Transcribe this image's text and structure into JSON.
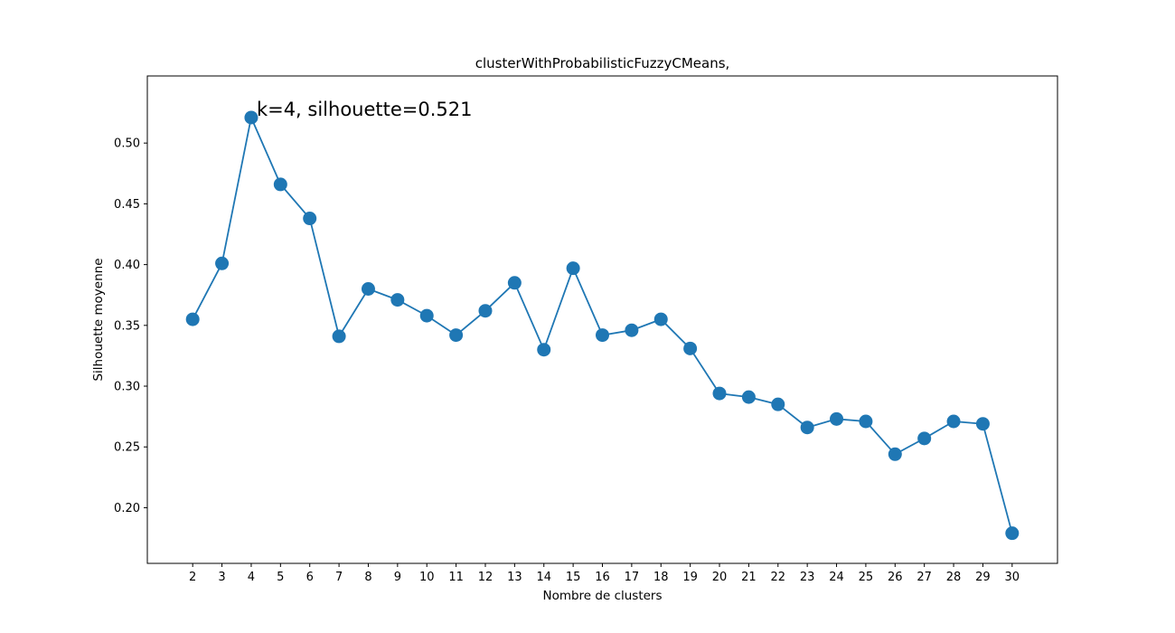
{
  "chart_data": {
    "type": "line",
    "title": "clusterWithProbabilisticFuzzyCMeans,",
    "xlabel": "Nombre de clusters",
    "ylabel": "Silhouette moyenne",
    "x": [
      2,
      3,
      4,
      5,
      6,
      7,
      8,
      9,
      10,
      11,
      12,
      13,
      14,
      15,
      16,
      17,
      18,
      19,
      20,
      21,
      22,
      23,
      24,
      25,
      26,
      27,
      28,
      29,
      30
    ],
    "series": [
      {
        "values": [
          0.355,
          0.401,
          0.521,
          0.466,
          0.438,
          0.341,
          0.38,
          0.371,
          0.358,
          0.342,
          0.362,
          0.385,
          0.33,
          0.397,
          0.342,
          0.346,
          0.355,
          0.331,
          0.294,
          0.291,
          0.285,
          0.266,
          0.273,
          0.271,
          0.244,
          0.257,
          0.271,
          0.269,
          0.179
        ],
        "color": "#1f77b4"
      }
    ],
    "xlim": [
      0.45,
      31.55
    ],
    "ylim": [
      0.1542,
      0.5552
    ],
    "yticks": [
      "0.20",
      "0.25",
      "0.30",
      "0.35",
      "0.40",
      "0.45",
      "0.50"
    ],
    "xticks": [
      "2",
      "3",
      "4",
      "5",
      "6",
      "7",
      "8",
      "9",
      "10",
      "11",
      "12",
      "13",
      "14",
      "15",
      "16",
      "17",
      "18",
      "19",
      "20",
      "21",
      "22",
      "23",
      "24",
      "25",
      "26",
      "27",
      "28",
      "29",
      "30"
    ],
    "annotation": {
      "text": "k=4, silhouette=0.521",
      "x": 4,
      "y": 0.521
    },
    "grid": false,
    "legend": false
  }
}
